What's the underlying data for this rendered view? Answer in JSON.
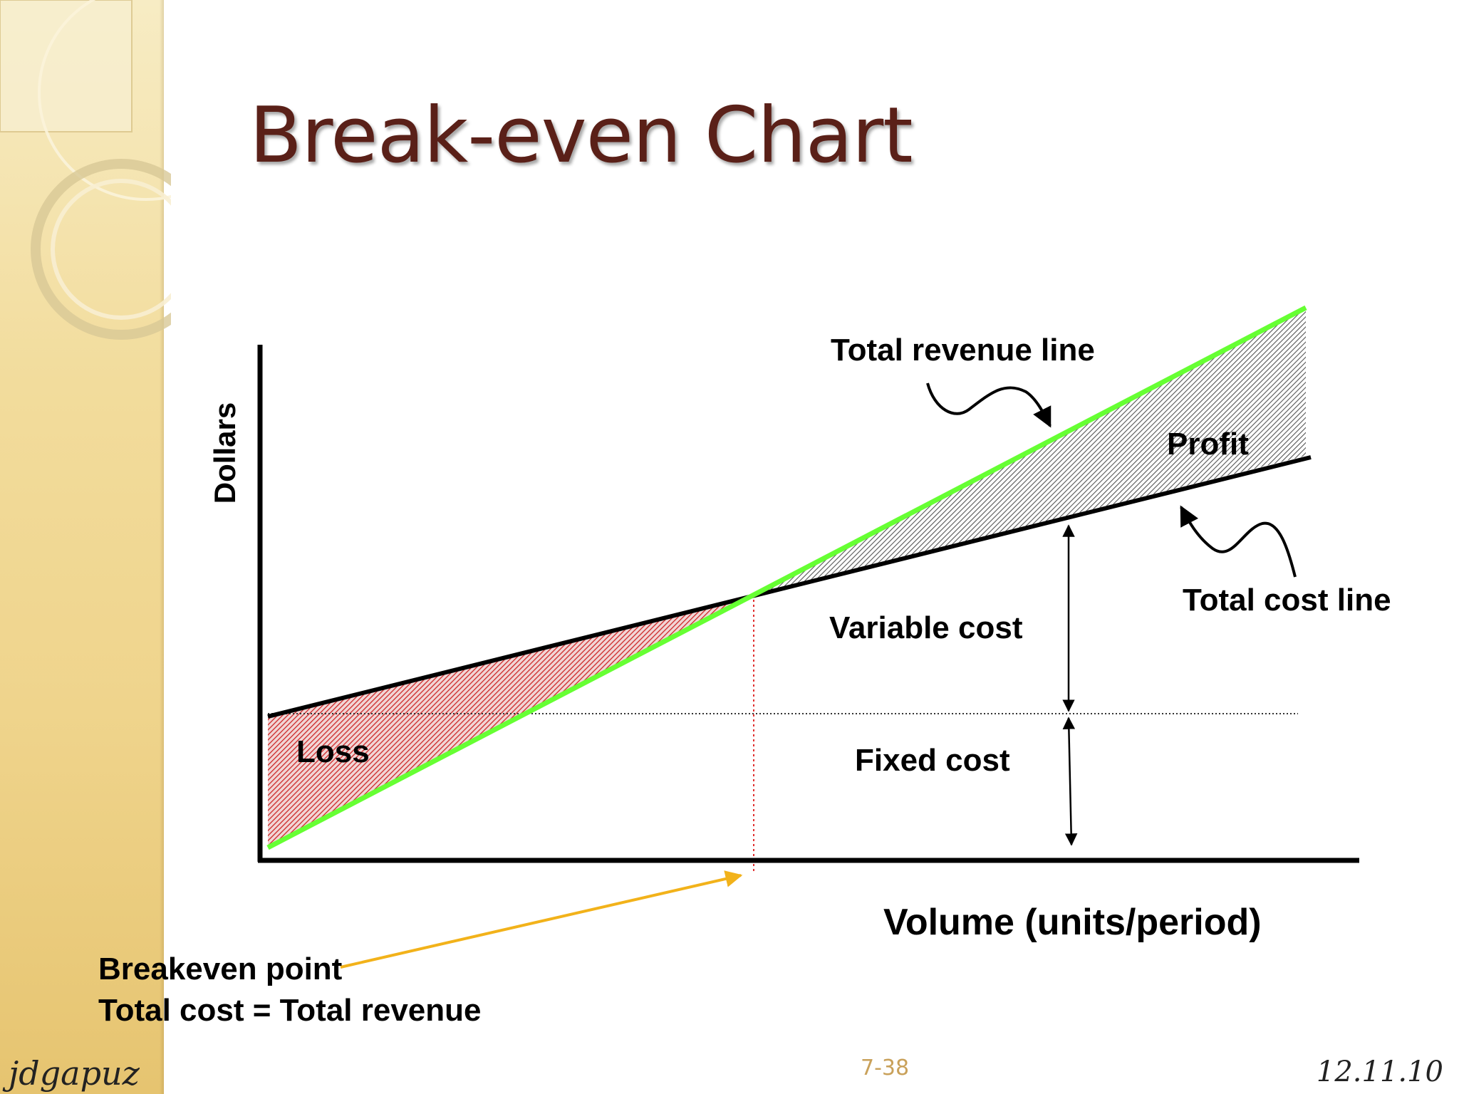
{
  "slide": {
    "title": "Break-even Chart",
    "author": "jdgapuz",
    "page_number": "7-38",
    "date": "12.11.10"
  },
  "diagram": {
    "y_axis_label": "Dollars",
    "x_axis_label": "Volume (units/period)",
    "revenue_label": "Total revenue line",
    "cost_label": "Total cost line",
    "profit_label": "Profit",
    "loss_label": "Loss",
    "variable_cost_label": "Variable cost",
    "fixed_cost_label": "Fixed cost",
    "breakeven_line1": "Breakeven point",
    "breakeven_line2": "Total cost = Total revenue"
  },
  "colors": {
    "title": "#5a2018",
    "revenue_line": "#66ff33",
    "loss_fill": "#cc2222",
    "breakeven_arrow": "#f2b21a",
    "breakeven_marker": "#e03030",
    "side_band": "#f2dc9c"
  }
}
